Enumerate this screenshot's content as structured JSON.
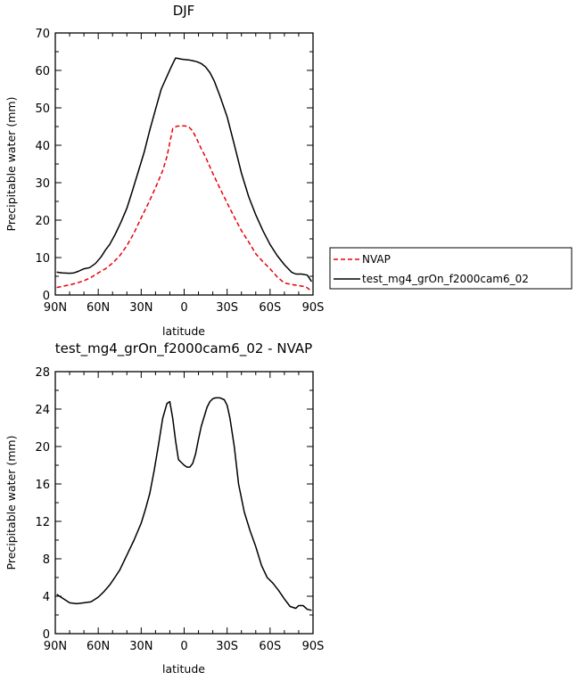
{
  "chart_data": [
    {
      "type": "line",
      "title": "DJF",
      "xlabel": "latitude",
      "ylabel": "Precipitable water (mm)",
      "xlim": [
        90,
        -90
      ],
      "ylim": [
        0,
        70
      ],
      "xticks": [
        {
          "value": 90,
          "label": "90N"
        },
        {
          "value": 60,
          "label": "60N"
        },
        {
          "value": 30,
          "label": "30N"
        },
        {
          "value": 0,
          "label": "0"
        },
        {
          "value": -30,
          "label": "30S"
        },
        {
          "value": -60,
          "label": "60S"
        },
        {
          "value": -90,
          "label": "90S"
        }
      ],
      "yticks": [
        0,
        10,
        20,
        30,
        40,
        50,
        60,
        70
      ],
      "legend_position": "right",
      "series": [
        {
          "name": "NVAP",
          "color": "#e8000b",
          "dash": true,
          "x": [
            89,
            85,
            80,
            75,
            70,
            65,
            60,
            55,
            50,
            45,
            40,
            35,
            30,
            25,
            20,
            15,
            12,
            8,
            5,
            2,
            0,
            -3,
            -6,
            -9,
            -12,
            -15,
            -20,
            -25,
            -30,
            -35,
            -40,
            -45,
            -50,
            -55,
            -60,
            -65,
            -70,
            -75,
            -80,
            -85,
            -89
          ],
          "y": [
            2.0,
            2.3,
            2.7,
            3.2,
            3.8,
            4.7,
            5.9,
            7.0,
            8.5,
            10.5,
            13.2,
            16.6,
            20.6,
            24.5,
            28.7,
            33.2,
            37.0,
            44.5,
            45.1,
            45.2,
            45.2,
            45.0,
            43.8,
            41.5,
            39.0,
            36.8,
            32.5,
            28.5,
            24.6,
            20.8,
            17.2,
            14.2,
            11.0,
            8.9,
            7.0,
            4.8,
            3.2,
            2.8,
            2.5,
            2.2,
            1.0
          ]
        },
        {
          "name": "test_mg4_grOn_f2000cam6_02",
          "color": "#000000",
          "dash": false,
          "x": [
            89,
            85,
            80,
            77,
            74,
            70,
            66,
            62,
            58,
            55,
            52,
            48,
            44,
            40,
            36,
            32,
            28,
            24,
            20,
            16,
            12,
            9,
            6,
            4,
            2,
            0,
            -3,
            -6,
            -9,
            -12,
            -15,
            -18,
            -21,
            -25,
            -30,
            -35,
            -40,
            -45,
            -50,
            -55,
            -60,
            -65,
            -70,
            -75,
            -78,
            -82,
            -86,
            -89
          ],
          "y": [
            6.1,
            5.9,
            5.8,
            5.9,
            6.3,
            7.0,
            7.3,
            8.4,
            10.2,
            12.0,
            13.5,
            16.3,
            19.6,
            23.2,
            28.0,
            33.0,
            38.0,
            44.1,
            49.6,
            55.0,
            58.4,
            61.0,
            63.3,
            63.2,
            63.0,
            62.9,
            62.8,
            62.6,
            62.3,
            61.8,
            60.9,
            59.4,
            57.2,
            53.2,
            47.6,
            40.2,
            32.6,
            26.3,
            21.4,
            17.2,
            13.5,
            10.5,
            8.1,
            6.1,
            5.6,
            5.6,
            5.3,
            3.6
          ]
        }
      ]
    },
    {
      "type": "line",
      "title": "test_mg4_grOn_f2000cam6_02 - NVAP",
      "xlabel": "latitude",
      "ylabel": "Precipitable water (mm)",
      "xlim": [
        90,
        -90
      ],
      "ylim": [
        0,
        28
      ],
      "xticks": [
        {
          "value": 90,
          "label": "90N"
        },
        {
          "value": 60,
          "label": "60N"
        },
        {
          "value": 30,
          "label": "30N"
        },
        {
          "value": 0,
          "label": "0"
        },
        {
          "value": -30,
          "label": "30S"
        },
        {
          "value": -60,
          "label": "60S"
        },
        {
          "value": -90,
          "label": "90S"
        }
      ],
      "yticks": [
        0,
        4,
        8,
        12,
        16,
        20,
        24,
        28
      ],
      "series": [
        {
          "color": "#000000",
          "dash": false,
          "x": [
            89,
            85,
            80,
            75,
            70,
            65,
            60,
            56,
            52,
            48,
            45,
            40,
            35,
            30,
            27,
            24,
            21,
            18,
            15,
            12,
            10,
            8,
            6,
            4,
            2,
            0,
            -2,
            -4,
            -6,
            -8,
            -10,
            -12,
            -14,
            -16,
            -18,
            -20,
            -22,
            -25,
            -28,
            -30,
            -32,
            -35,
            -38,
            -42,
            -46,
            -50,
            -54,
            -58,
            -62,
            -66,
            -70,
            -74,
            -78,
            -80,
            -83,
            -86,
            -89
          ],
          "y": [
            4.2,
            3.8,
            3.3,
            3.2,
            3.3,
            3.4,
            3.9,
            4.5,
            5.2,
            6.1,
            6.8,
            8.4,
            10.0,
            11.8,
            13.3,
            15.0,
            17.4,
            20.1,
            23.0,
            24.6,
            24.8,
            23.0,
            20.6,
            18.6,
            18.3,
            18.0,
            17.8,
            17.8,
            18.2,
            19.2,
            20.8,
            22.2,
            23.2,
            24.2,
            24.8,
            25.1,
            25.2,
            25.2,
            25.0,
            24.4,
            23.0,
            20.0,
            16.0,
            13.0,
            11.0,
            9.3,
            7.3,
            6.0,
            5.4,
            4.6,
            3.7,
            2.9,
            2.7,
            3.0,
            3.0,
            2.6,
            2.5
          ]
        }
      ]
    }
  ]
}
